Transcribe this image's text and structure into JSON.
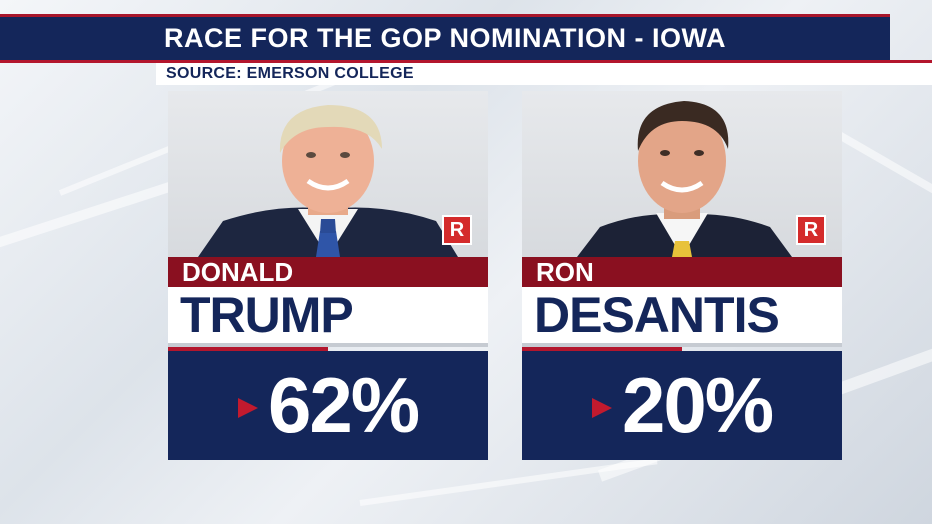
{
  "header": {
    "title": "RACE FOR THE GOP NOMINATION - IOWA",
    "source": "SOURCE: EMERSON COLLEGE"
  },
  "colors": {
    "navy": "#14265a",
    "red_accent": "#b3162d",
    "name_bar": "#8a1020",
    "party_badge": "#d42b2b"
  },
  "candidates": [
    {
      "first_name": "DONALD",
      "last_name": "TRUMP",
      "party": "R",
      "percent": "62%"
    },
    {
      "first_name": "RON",
      "last_name": "DESANTIS",
      "party": "R",
      "percent": "20%"
    }
  ]
}
